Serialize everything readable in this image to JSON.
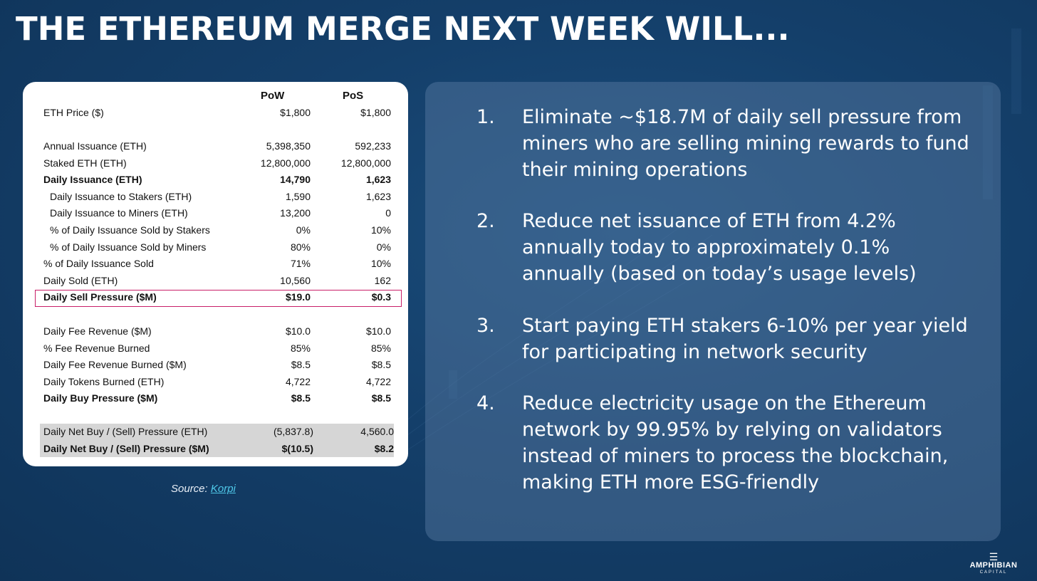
{
  "title": "THE ETHEREUM MERGE NEXT WEEK WILL...",
  "table": {
    "col_pow": "PoW",
    "col_pos": "PoS",
    "rows": [
      {
        "label": "ETH Price ($)",
        "pow": "$1,800",
        "pos": "$1,800"
      },
      {
        "label": "Annual Issuance (ETH)",
        "pow": "5,398,350",
        "pos": "592,233"
      },
      {
        "label": "Staked ETH (ETH)",
        "pow": "12,800,000",
        "pos": "12,800,000"
      },
      {
        "label": "Daily Issuance (ETH)",
        "pow": "14,790",
        "pos": "1,623"
      },
      {
        "label": "Daily Issuance to Stakers (ETH)",
        "pow": "1,590",
        "pos": "1,623"
      },
      {
        "label": "Daily Issuance to Miners (ETH)",
        "pow": "13,200",
        "pos": "0"
      },
      {
        "label": "% of Daily Issuance Sold by Stakers",
        "pow": "0%",
        "pos": "10%"
      },
      {
        "label": "% of Daily Issuance Sold by Miners",
        "pow": "80%",
        "pos": "0%"
      },
      {
        "label": "% of Daily Issuance Sold",
        "pow": "71%",
        "pos": "10%"
      },
      {
        "label": "Daily Sold (ETH)",
        "pow": "10,560",
        "pos": "162"
      },
      {
        "label": "Daily Sell Pressure ($M)",
        "pow": "$19.0",
        "pos": "$0.3"
      },
      {
        "label": "Daily Fee Revenue ($M)",
        "pow": "$10.0",
        "pos": "$10.0"
      },
      {
        "label": "% Fee Revenue Burned",
        "pow": "85%",
        "pos": "85%"
      },
      {
        "label": "Daily Fee Revenue Burned ($M)",
        "pow": "$8.5",
        "pos": "$8.5"
      },
      {
        "label": "Daily Tokens Burned (ETH)",
        "pow": "4,722",
        "pos": "4,722"
      },
      {
        "label": "Daily Buy Pressure ($M)",
        "pow": "$8.5",
        "pos": "$8.5"
      },
      {
        "label": "Daily Net Buy / (Sell) Pressure (ETH)",
        "pow": "(5,837.8)",
        "pos": "4,560.0"
      },
      {
        "label": "Daily Net Buy / (Sell) Pressure ($M)",
        "pow": "$(10.5)",
        "pos": "$8.2"
      }
    ]
  },
  "source": {
    "prefix": "Source:",
    "link": "Korpi"
  },
  "points": [
    {
      "num": "1.",
      "text": "Eliminate ~$18.7M of daily sell pressure from miners who are selling mining rewards to fund their mining operations"
    },
    {
      "num": "2.",
      "text": "Reduce net issuance of ETH from 4.2% annually today to approximately 0.1% annually (based on today’s usage levels)"
    },
    {
      "num": "3.",
      "text": "Start paying ETH stakers 6-10% per year yield for participating in network security"
    },
    {
      "num": "4.",
      "text": "Reduce electricity usage on the Ethereum network by 99.95% by relying on validators instead of miners to process the blockchain, making ETH more ESG-friendly"
    }
  ],
  "logo": {
    "name": "AMPHIBIAN",
    "sub": "CAPITAL"
  },
  "colors": {
    "background": "#143f6a",
    "highlight_border": "#c81e68",
    "link": "#4fc8e8"
  }
}
